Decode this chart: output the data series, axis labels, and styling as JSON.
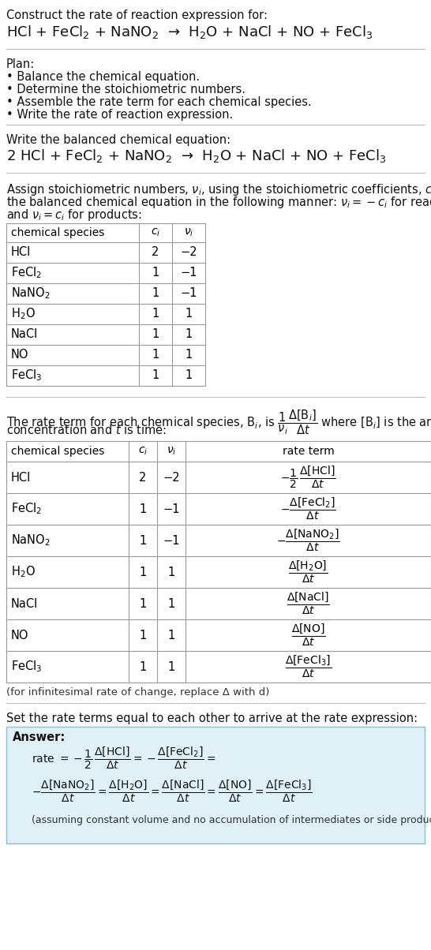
{
  "bg_color": "#ffffff",
  "title_line1": "Construct the rate of reaction expression for:",
  "reaction_unbalanced": "HCl + FeCl$_2$ + NaNO$_2$  →  H$_2$O + NaCl + NO + FeCl$_3$",
  "plan_header": "Plan:",
  "plan_items": [
    "• Balance the chemical equation.",
    "• Determine the stoichiometric numbers.",
    "• Assemble the rate term for each chemical species.",
    "• Write the rate of reaction expression."
  ],
  "section2_header": "Write the balanced chemical equation:",
  "reaction_balanced": "2 HCl + FeCl$_2$ + NaNO$_2$  →  H$_2$O + NaCl + NO + FeCl$_3$",
  "section3_intro_lines": [
    "Assign stoichiometric numbers, $\\nu_i$, using the stoichiometric coefficients, $c_i$, from",
    "the balanced chemical equation in the following manner: $\\nu_i = -c_i$ for reactants",
    "and $\\nu_i = c_i$ for products:"
  ],
  "table1_headers": [
    "chemical species",
    "$c_i$",
    "$\\nu_i$"
  ],
  "table1_rows": [
    [
      "HCl",
      "2",
      "−2"
    ],
    [
      "FeCl$_2$",
      "1",
      "−1"
    ],
    [
      "NaNO$_2$",
      "1",
      "−1"
    ],
    [
      "H$_2$O",
      "1",
      "1"
    ],
    [
      "NaCl",
      "1",
      "1"
    ],
    [
      "NO",
      "1",
      "1"
    ],
    [
      "FeCl$_3$",
      "1",
      "1"
    ]
  ],
  "section4_intro_lines": [
    "The rate term for each chemical species, B$_i$, is $\\dfrac{1}{\\nu_i}\\dfrac{\\Delta[\\mathrm{B}_i]}{\\Delta t}$ where [B$_i$] is the amount",
    "concentration and $t$ is time:"
  ],
  "table2_headers": [
    "chemical species",
    "$c_i$",
    "$\\nu_i$",
    "rate term"
  ],
  "table2_rows": [
    [
      "HCl",
      "2",
      "−2",
      "$-\\dfrac{1}{2}\\,\\dfrac{\\Delta[\\mathrm{HCl}]}{\\Delta t}$"
    ],
    [
      "FeCl$_2$",
      "1",
      "−1",
      "$-\\dfrac{\\Delta[\\mathrm{FeCl_2}]}{\\Delta t}$"
    ],
    [
      "NaNO$_2$",
      "1",
      "−1",
      "$-\\dfrac{\\Delta[\\mathrm{NaNO_2}]}{\\Delta t}$"
    ],
    [
      "H$_2$O",
      "1",
      "1",
      "$\\dfrac{\\Delta[\\mathrm{H_2O}]}{\\Delta t}$"
    ],
    [
      "NaCl",
      "1",
      "1",
      "$\\dfrac{\\Delta[\\mathrm{NaCl}]}{\\Delta t}$"
    ],
    [
      "NO",
      "1",
      "1",
      "$\\dfrac{\\Delta[\\mathrm{NO}]}{\\Delta t}$"
    ],
    [
      "FeCl$_3$",
      "1",
      "1",
      "$\\dfrac{\\Delta[\\mathrm{FeCl_3}]}{\\Delta t}$"
    ]
  ],
  "infinitesimal_note": "(for infinitesimal rate of change, replace Δ with d)",
  "section5_header": "Set the rate terms equal to each other to arrive at the rate expression:",
  "answer_label": "Answer:",
  "answer_box_color": "#dff0f7",
  "answer_box_border": "#90bfd0",
  "answer_note": "(assuming constant volume and no accumulation of intermediates or side products)"
}
